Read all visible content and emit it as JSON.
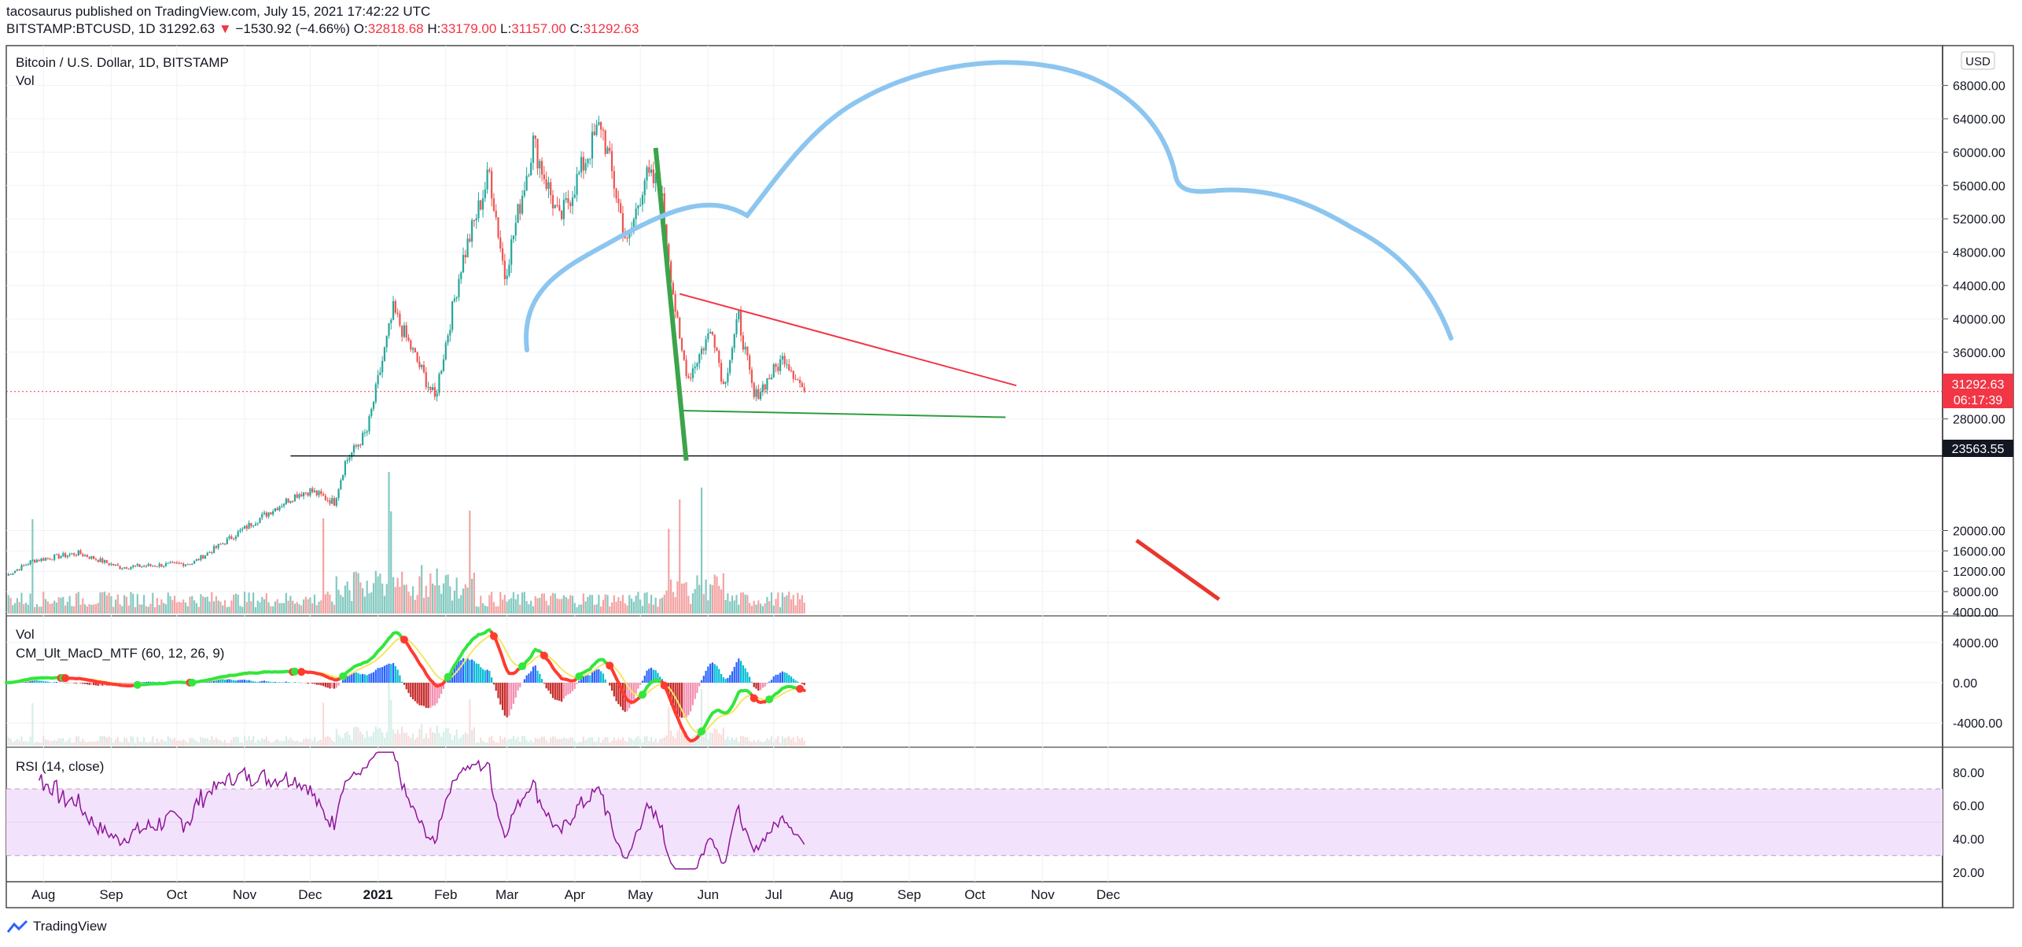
{
  "header": {
    "published": "tacosaurus published on TradingView.com, July 15, 2021 17:42:22 UTC",
    "symbol": "BITSTAMP:BTCUSD, 1D",
    "last": "31292.63",
    "change": "−1530.92 (−4.66%)",
    "O_label": "O:",
    "O": "32818.68",
    "H_label": "H:",
    "H": "33179.00",
    "L_label": "L:",
    "L": "31157.00",
    "C_label": "C:",
    "C": "31292.63"
  },
  "legend": {
    "main_title": "Bitcoin / U.S. Dollar, 1D, BITSTAMP",
    "vol": "Vol",
    "macd_vol": "Vol",
    "macd_title": "CM_Ult_MacD_MTF (60, 12, 26, 9)",
    "rsi_title": "RSI (14, close)"
  },
  "currency_badge": "USD",
  "price_badge": {
    "price": "31292.63",
    "countdown": "06:17:39"
  },
  "level_badge": "23563.55",
  "brand": "TradingView",
  "colors": {
    "up": "#26a69a",
    "down": "#ef5350",
    "arc": "#8cc6f0",
    "trend_red": "#f23645",
    "trend_green": "#2e9e3e",
    "rsi_line": "#8e1599",
    "rsi_band": "#f3e2fb"
  },
  "chart_data": [
    {
      "type": "candlestick",
      "title": "Bitcoin / U.S. Dollar, 1D, BITSTAMP",
      "ylabel": "USD",
      "y_ticks": [
        4000,
        8000,
        12000,
        16000,
        20000,
        28000,
        36000,
        40000,
        44000,
        48000,
        52000,
        56000,
        60000,
        64000,
        68000
      ],
      "y_tick_labels": [
        "4000.00",
        "8000.00",
        "12000.00",
        "16000.00",
        "20000.00",
        "28000.00",
        "36000.00",
        "40000.00",
        "44000.00",
        "48000.00",
        "52000.00",
        "56000.00",
        "60000.00",
        "64000.00",
        "68000.00"
      ],
      "x_tick_labels": [
        "Aug",
        "Sep",
        "Oct",
        "Nov",
        "Dec",
        "2021",
        "Feb",
        "Mar",
        "Apr",
        "May",
        "Jun",
        "Jul",
        "Aug",
        "Sep",
        "Oct",
        "Nov",
        "Dec"
      ],
      "close_path_key_points": [
        [
          "2020-07-15",
          9200
        ],
        [
          "2020-07-27",
          11000
        ],
        [
          "2020-08-17",
          11900
        ],
        [
          "2020-09-05",
          10200
        ],
        [
          "2020-10-08",
          10700
        ],
        [
          "2020-10-21",
          12900
        ],
        [
          "2020-11-05",
          15600
        ],
        [
          "2020-11-25",
          19000
        ],
        [
          "2020-12-01",
          19400
        ],
        [
          "2020-12-12",
          18000
        ],
        [
          "2020-12-17",
          22800
        ],
        [
          "2020-12-27",
          26500
        ],
        [
          "2021-01-08",
          41000
        ],
        [
          "2021-01-27",
          30400
        ],
        [
          "2021-02-08",
          46400
        ],
        [
          "2021-02-21",
          57500
        ],
        [
          "2021-02-28",
          45200
        ],
        [
          "2021-03-13",
          61200
        ],
        [
          "2021-03-25",
          51700
        ],
        [
          "2021-04-13",
          63500
        ],
        [
          "2021-04-25",
          48800
        ],
        [
          "2021-05-03",
          57000
        ],
        [
          "2021-05-10",
          56000
        ],
        [
          "2021-05-19",
          37000
        ],
        [
          "2021-05-23",
          33000
        ],
        [
          "2021-06-03",
          39000
        ],
        [
          "2021-06-08",
          32000
        ],
        [
          "2021-06-15",
          40100
        ],
        [
          "2021-06-22",
          30500
        ],
        [
          "2021-07-06",
          35500
        ],
        [
          "2021-07-15",
          31292.63
        ]
      ],
      "annotations": {
        "horizontal_level": 23563.55,
        "red_trendline": [
          [
            "2021-05-19",
            43000
          ],
          [
            "2021-10-20",
            32000
          ]
        ],
        "green_trendline": [
          [
            "2021-05-19",
            29000
          ],
          [
            "2021-10-15",
            28200
          ]
        ],
        "green_steep_line": [
          [
            "2021-05-08",
            60500
          ],
          [
            "2021-05-22",
            23000
          ]
        ],
        "last_price": 31292.63
      }
    },
    {
      "type": "bar",
      "title": "Vol",
      "y_tick_labels": [
        "4000.00",
        "8000.00",
        "12000.00",
        "16000.00",
        "20000.00"
      ]
    },
    {
      "type": "line",
      "title": "CM_Ult_MacD_MTF (60, 12, 26, 9)",
      "y_tick_labels": [
        "4000.00",
        "0.00",
        "-4000.00"
      ]
    },
    {
      "type": "line",
      "title": "RSI (14, close)",
      "y_ticks": [
        20,
        40,
        60,
        80
      ],
      "y_tick_labels": [
        "20.00",
        "40.00",
        "60.00",
        "80.00"
      ],
      "band": [
        30,
        70
      ]
    }
  ]
}
